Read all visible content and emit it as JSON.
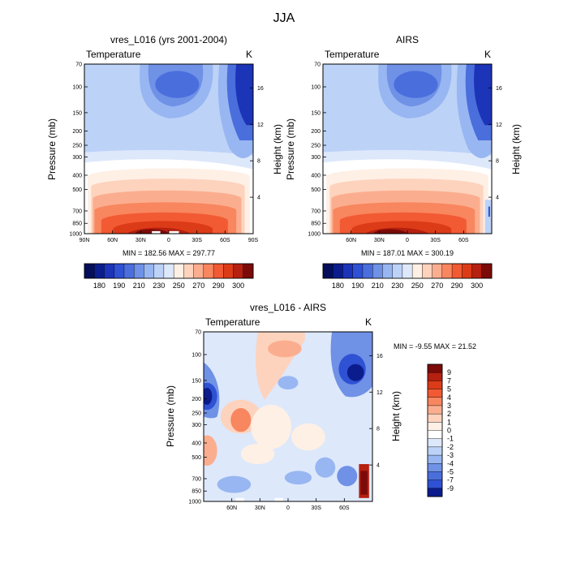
{
  "figure": {
    "title": "JJA"
  },
  "colors": {
    "warm": [
      "#fff0e6",
      "#fdd3bd",
      "#fbae8f",
      "#f8865f",
      "#f25a33",
      "#dc3b17",
      "#b52010",
      "#7b0a08"
    ],
    "cool": [
      "#dde8fb",
      "#bcd2f7",
      "#98b6f1",
      "#6f91e6",
      "#4a6edc",
      "#2f51d4",
      "#1c34b8",
      "#0b1d8c",
      "#040e5a"
    ],
    "neutral": "#ffffff"
  },
  "panels": [
    {
      "title": "vres_L016 (yrs 2001-2004)",
      "field": "Temperature",
      "units": "K",
      "stats": "MIN = 182.56   MAX = 297.77",
      "ylabel_left": "Pressure (mb)",
      "ylabel_right": "Height (km)"
    },
    {
      "title": "AIRS",
      "field": "Temperature",
      "units": "K",
      "stats": "MIN = 187.01   MAX = 300.19",
      "ylabel_left": "Pressure (mb)",
      "ylabel_right": "Height (km)"
    },
    {
      "title": "vres_L016 - AIRS",
      "field": "Temperature",
      "units": "K",
      "stats": "MIN =  -9.55   MAX =  21.52",
      "ylabel_left": "Pressure (mb)",
      "ylabel_right": "Height (km)"
    }
  ],
  "chart_data": [
    {
      "type": "heatmap",
      "title": "vres_L016 (yrs 2001-2004)",
      "subtitle": "Temperature",
      "units": "K",
      "xlabel": "",
      "ylabel": "Pressure (mb)",
      "y2label": "Height (km)",
      "x_ticks": [
        "90N",
        "60N",
        "30N",
        "0",
        "30S",
        "60S",
        "90S"
      ],
      "y_ticks": [
        70,
        100,
        150,
        200,
        250,
        300,
        400,
        500,
        700,
        850,
        1000
      ],
      "y2_ticks": [
        4,
        8,
        12,
        16
      ],
      "min": 182.56,
      "max": 297.77,
      "colorbar": [
        180,
        190,
        210,
        230,
        250,
        270,
        290,
        300
      ],
      "colorbar_side": "bottom"
    },
    {
      "type": "heatmap",
      "title": "AIRS",
      "subtitle": "Temperature",
      "units": "K",
      "xlabel": "",
      "ylabel": "Pressure (mb)",
      "y2label": "Height (km)",
      "x_ticks": [
        "60N",
        "30N",
        "0",
        "30S",
        "60S"
      ],
      "y_ticks": [
        70,
        100,
        150,
        200,
        250,
        300,
        400,
        500,
        700,
        850,
        1000
      ],
      "y2_ticks": [
        4,
        8,
        12,
        16
      ],
      "min": 187.01,
      "max": 300.19,
      "colorbar": [
        180,
        190,
        210,
        230,
        250,
        270,
        290,
        300
      ],
      "colorbar_side": "bottom"
    },
    {
      "type": "heatmap",
      "title": "vres_L016 - AIRS",
      "subtitle": "Temperature",
      "units": "K",
      "xlabel": "",
      "ylabel": "Pressure (mb)",
      "y2label": "Height (km)",
      "x_ticks": [
        "60N",
        "30N",
        "0",
        "30S",
        "60S"
      ],
      "y_ticks": [
        70,
        100,
        150,
        200,
        250,
        300,
        400,
        500,
        700,
        850,
        1000
      ],
      "y2_ticks": [
        4,
        8,
        12,
        16
      ],
      "min": -9.55,
      "max": 21.52,
      "colorbar": [
        9,
        7,
        5,
        4,
        3,
        2,
        1,
        0,
        -1,
        -2,
        -3,
        -4,
        -5,
        -7,
        -9
      ],
      "colorbar_side": "right"
    }
  ]
}
